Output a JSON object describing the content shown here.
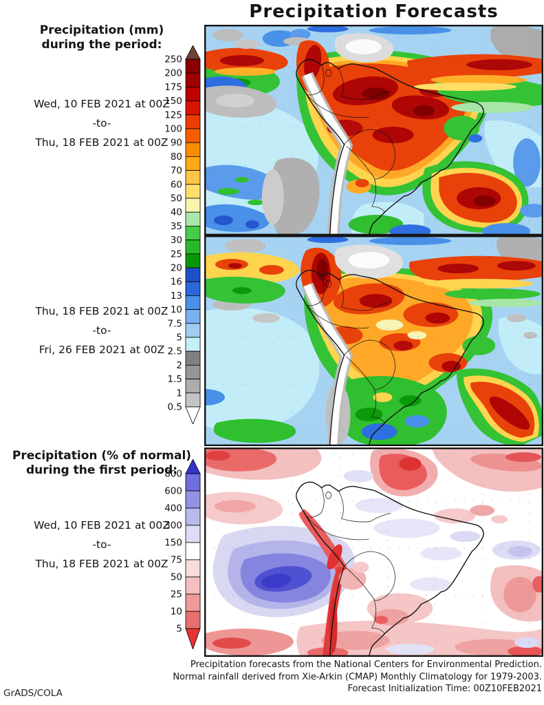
{
  "title": "Precipitation Forecasts",
  "credit": "GrADS/COLA",
  "sections": [
    {
      "heading_line1": "Precipitation (mm)",
      "heading_line2": "during the period:",
      "period_start": "Wed, 10 FEB 2021 at 00Z",
      "separator": "-to-",
      "period_end": "Thu, 18 FEB 2021 at 00Z"
    },
    {
      "period_start": "Thu, 18 FEB 2021 at 00Z",
      "separator": "-to-",
      "period_end": "Fri, 26 FEB 2021 at 00Z"
    },
    {
      "heading_line1": "Precipitation (% of normal)",
      "heading_line2": "during the first period:",
      "period_start": "Wed, 10 FEB 2021 at 00Z",
      "separator": "-to-",
      "period_end": "Thu, 18 FEB 2021 at 00Z"
    }
  ],
  "colorbars": [
    {
      "id": "mm",
      "unit": "mm",
      "levels": [
        "250",
        "200",
        "175",
        "150",
        "125",
        "100",
        "90",
        "80",
        "70",
        "60",
        "50",
        "40",
        "35",
        "30",
        "25",
        "20",
        "16",
        "13",
        "10",
        "7.5",
        "5",
        "2.5",
        "2",
        "1.5",
        "1",
        "0.5"
      ],
      "colors": [
        "#8A0000",
        "#A00000",
        "#BE0000",
        "#D81400",
        "#EE3C00",
        "#F55E00",
        "#FA8C00",
        "#FFAA14",
        "#FFC44A",
        "#FFDE6E",
        "#F8F4AC",
        "#AAE8AA",
        "#46CC46",
        "#2AB82A",
        "#089608",
        "#2050C8",
        "#2A68DC",
        "#4890E8",
        "#78B0F0",
        "#A0CCF4",
        "#C4F0F8",
        "#808080",
        "#969696",
        "#ACACAC",
        "#C4C4C4"
      ],
      "arrow_top_color": "#6B4438",
      "arrow_bottom_color": "#FFFFFF"
    },
    {
      "id": "percent",
      "unit": "% of normal",
      "levels": [
        "800",
        "600",
        "400",
        "300",
        "150",
        "75",
        "50",
        "25",
        "10",
        "5"
      ],
      "colors": [
        "#6E6EDC",
        "#9393E4",
        "#B9B9EC",
        "#DCDCF5",
        "#FFFFFF",
        "#F8DCDC",
        "#F4BFBF",
        "#EF9A9A",
        "#EA6E6E"
      ],
      "arrow_top_color": "#3333CC",
      "arrow_bottom_color": "#E63333"
    }
  ],
  "footer": {
    "line1": "Precipitation forecasts from the National Centers for Environmental Prediction.",
    "line2": "Normal rainfall derived from Xie-Arkin (CMAP) Monthly Climatology for 1979-2003.",
    "line3": "Forecast Initialization Time: 00Z10FEB2021"
  }
}
